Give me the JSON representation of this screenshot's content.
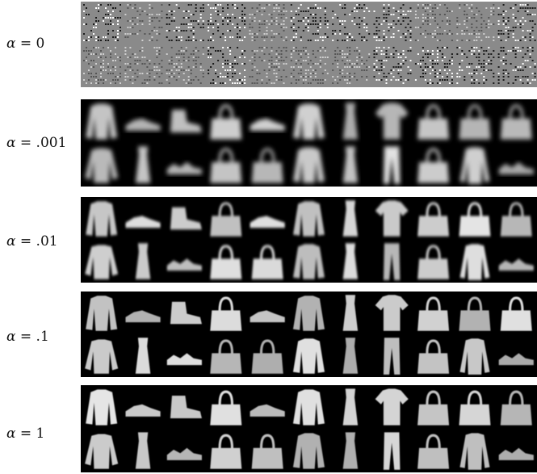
{
  "rows": [
    {
      "label": "α = 0",
      "alpha_symbol": "α",
      "alpha_value": "= 0",
      "kind": "noise"
    },
    {
      "label": "α = .001",
      "alpha_symbol": "α",
      "alpha_value": "= .001",
      "kind": "blurry"
    },
    {
      "label": "α = .01",
      "alpha_symbol": "α",
      "alpha_value": "= .01",
      "kind": "medium"
    },
    {
      "label": "α = .1",
      "alpha_symbol": "α",
      "alpha_value": "= .1",
      "kind": "sharp"
    },
    {
      "label": "α = 1",
      "alpha_symbol": "α",
      "alpha_value": "= 1",
      "kind": "sharp"
    }
  ],
  "grid": {
    "columns": 11,
    "rows_per_panel": 2,
    "top_row_items": [
      "coat",
      "sneaker",
      "ankle-boot",
      "bag",
      "sneaker",
      "coat",
      "dress",
      "tshirt",
      "bag",
      "bag",
      "bag"
    ],
    "bottom_row_items": [
      "pullover",
      "dress",
      "sandal",
      "bag",
      "bag",
      "coat",
      "dress",
      "trouser",
      "bag",
      "shirt",
      "sandal"
    ]
  },
  "colors": {
    "panel_background": "#000000",
    "noise_background": "#8a8a8a",
    "item_fill": "#d8d8d8"
  }
}
